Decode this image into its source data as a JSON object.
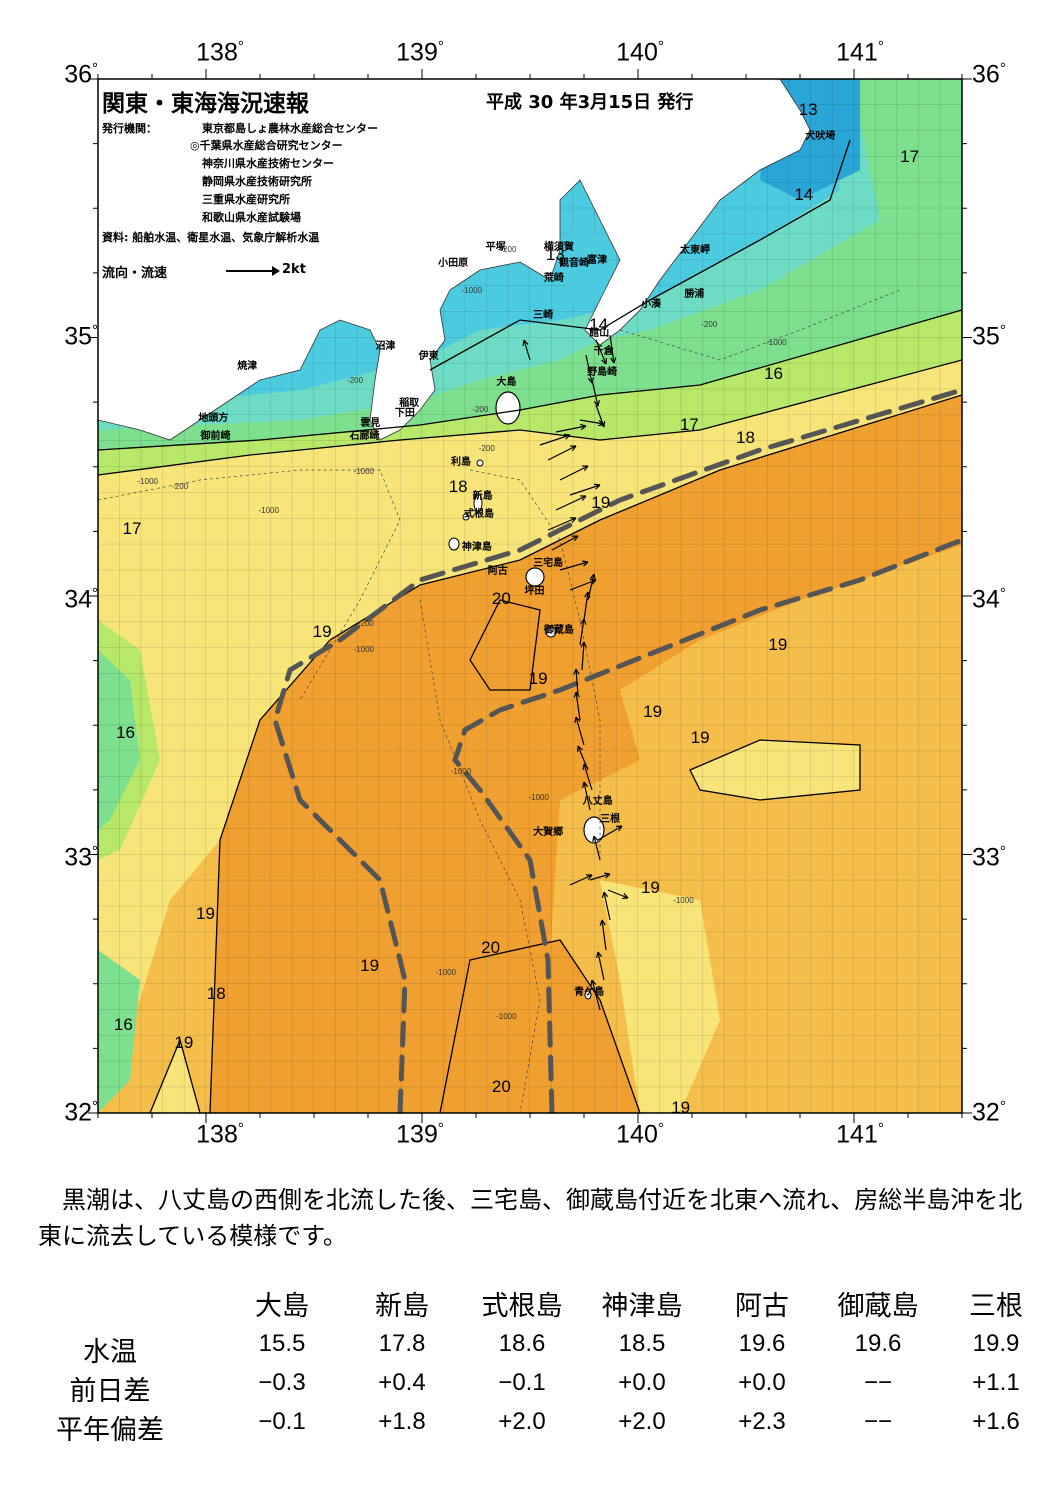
{
  "title": "関東・東海海況速報",
  "issue_date": "平成 30 年3月15日 発行",
  "issuer_label": "発行機関：",
  "issuers": [
    "東京都島しょ農林水産総合センター",
    "◎千葉県水産総合研究センター",
    "神奈川県水産技術センター",
    "静岡県水産技術研究所",
    "三重県水産研究所",
    "和歌山県水産試験場"
  ],
  "data_source": "資料: 船舶水温、衛星水温、気象庁解析水温",
  "legend": {
    "label": "流向・流速",
    "speed": "2kt"
  },
  "axes": {
    "lon_labels": [
      "138",
      "139",
      "140",
      "141"
    ],
    "lat_labels": [
      "36",
      "35",
      "34",
      "33",
      "32"
    ],
    "degree_symbol": "°"
  },
  "place_names": [
    {
      "name": "犬吠埼",
      "lon": 140.83,
      "lat": 35.79
    },
    {
      "name": "太東岬",
      "lon": 140.25,
      "lat": 35.35
    },
    {
      "name": "勝浦",
      "lon": 140.27,
      "lat": 35.18
    },
    {
      "name": "小湊",
      "lon": 140.07,
      "lat": 35.14
    },
    {
      "name": "富津",
      "lon": 139.82,
      "lat": 35.31
    },
    {
      "name": "横須賀",
      "lon": 139.62,
      "lat": 35.36
    },
    {
      "name": "観音崎",
      "lon": 139.69,
      "lat": 35.3
    },
    {
      "name": "荒崎",
      "lon": 139.62,
      "lat": 35.24
    },
    {
      "name": "平塚",
      "lon": 139.35,
      "lat": 35.36
    },
    {
      "name": "小田原",
      "lon": 139.13,
      "lat": 35.3
    },
    {
      "name": "三崎",
      "lon": 139.57,
      "lat": 35.1
    },
    {
      "name": "館山",
      "lon": 139.83,
      "lat": 35.03
    },
    {
      "name": "千倉",
      "lon": 139.85,
      "lat": 34.96
    },
    {
      "name": "野島崎",
      "lon": 139.82,
      "lat": 34.88
    },
    {
      "name": "沼津",
      "lon": 138.84,
      "lat": 34.98
    },
    {
      "name": "伊東",
      "lon": 139.04,
      "lat": 34.94
    },
    {
      "name": "焼津",
      "lon": 138.2,
      "lat": 34.9
    },
    {
      "name": "稲取",
      "lon": 138.95,
      "lat": 34.76
    },
    {
      "name": "下田",
      "lon": 138.93,
      "lat": 34.72
    },
    {
      "name": "雲見",
      "lon": 138.77,
      "lat": 34.68
    },
    {
      "name": "石廊崎",
      "lon": 138.72,
      "lat": 34.63
    },
    {
      "name": "地頭方",
      "lon": 138.02,
      "lat": 34.7
    },
    {
      "name": "御前崎",
      "lon": 138.03,
      "lat": 34.63
    },
    {
      "name": "大島",
      "lon": 139.4,
      "lat": 34.84
    },
    {
      "name": "利島",
      "lon": 139.19,
      "lat": 34.53
    },
    {
      "name": "新島",
      "lon": 139.29,
      "lat": 34.4
    },
    {
      "name": "式根島",
      "lon": 139.25,
      "lat": 34.33
    },
    {
      "name": "神津島",
      "lon": 139.24,
      "lat": 34.2
    },
    {
      "name": "阿古",
      "lon": 139.36,
      "lat": 34.11
    },
    {
      "name": "三宅島",
      "lon": 139.57,
      "lat": 34.14
    },
    {
      "name": "坪田",
      "lon": 139.53,
      "lat": 34.03
    },
    {
      "name": "御蔵島",
      "lon": 139.62,
      "lat": 33.88
    },
    {
      "name": "八丈島",
      "lon": 139.8,
      "lat": 33.22
    },
    {
      "name": "三根",
      "lon": 139.88,
      "lat": 33.15
    },
    {
      "name": "大賀郷",
      "lon": 139.57,
      "lat": 33.1
    },
    {
      "name": "青ケ島",
      "lon": 139.76,
      "lat": 32.48
    }
  ],
  "isotherm_labels": [
    {
      "text": "13",
      "lon": 140.79,
      "lat": 35.88
    },
    {
      "text": "13",
      "lon": 139.62,
      "lat": 35.32
    },
    {
      "text": "17",
      "lon": 141.26,
      "lat": 35.7
    },
    {
      "text": "14",
      "lon": 140.77,
      "lat": 35.55
    },
    {
      "text": "14",
      "lon": 139.82,
      "lat": 35.05
    },
    {
      "text": "16",
      "lon": 140.63,
      "lat": 34.86
    },
    {
      "text": "17",
      "lon": 140.24,
      "lat": 34.66
    },
    {
      "text": "18",
      "lon": 140.5,
      "lat": 34.61
    },
    {
      "text": "18",
      "lon": 139.17,
      "lat": 34.42
    },
    {
      "text": "19",
      "lon": 139.83,
      "lat": 34.36
    },
    {
      "text": "17",
      "lon": 137.66,
      "lat": 34.26
    },
    {
      "text": "20",
      "lon": 139.37,
      "lat": 33.99
    },
    {
      "text": "19",
      "lon": 138.54,
      "lat": 33.86
    },
    {
      "text": "19",
      "lon": 140.65,
      "lat": 33.81
    },
    {
      "text": "19",
      "lon": 139.54,
      "lat": 33.68
    },
    {
      "text": "19",
      "lon": 140.07,
      "lat": 33.55
    },
    {
      "text": "16",
      "lon": 137.63,
      "lat": 33.47
    },
    {
      "text": "19",
      "lon": 140.29,
      "lat": 33.45
    },
    {
      "text": "19",
      "lon": 140.06,
      "lat": 32.87
    },
    {
      "text": "19",
      "lon": 138.0,
      "lat": 32.77
    },
    {
      "text": "20",
      "lon": 139.32,
      "lat": 32.64
    },
    {
      "text": "19",
      "lon": 138.76,
      "lat": 32.57
    },
    {
      "text": "18",
      "lon": 138.05,
      "lat": 32.46
    },
    {
      "text": "16",
      "lon": 137.62,
      "lat": 32.34
    },
    {
      "text": "19",
      "lon": 137.9,
      "lat": 32.27
    },
    {
      "text": "20",
      "lon": 139.37,
      "lat": 32.1
    },
    {
      "text": "19",
      "lon": 140.2,
      "lat": 32.02
    }
  ],
  "depth_labels": [
    {
      "text": "-200",
      "lon": 139.4,
      "lat": 35.34
    },
    {
      "text": "-1000",
      "lon": 139.22,
      "lat": 35.18
    },
    {
      "text": "-200",
      "lon": 140.33,
      "lat": 35.05
    },
    {
      "text": "-1000",
      "lon": 140.63,
      "lat": 34.98
    },
    {
      "text": "-200",
      "lon": 138.69,
      "lat": 34.83
    },
    {
      "text": "-1000",
      "lon": 137.72,
      "lat": 34.44
    },
    {
      "text": "-200",
      "lon": 137.88,
      "lat": 34.42
    },
    {
      "text": "-1000",
      "lon": 138.28,
      "lat": 34.33
    },
    {
      "text": "-200",
      "lon": 139.27,
      "lat": 34.72
    },
    {
      "text": "-200",
      "lon": 139.3,
      "lat": 34.57
    },
    {
      "text": "-1000",
      "lon": 138.72,
      "lat": 34.48
    },
    {
      "text": "-1000",
      "lon": 138.72,
      "lat": 33.79
    },
    {
      "text": "-200",
      "lon": 138.74,
      "lat": 33.89
    },
    {
      "text": "-1000",
      "lon": 139.17,
      "lat": 33.32
    },
    {
      "text": "-1000",
      "lon": 139.53,
      "lat": 33.22
    },
    {
      "text": "-1000",
      "lon": 140.2,
      "lat": 32.82
    },
    {
      "text": "-1000",
      "lon": 139.1,
      "lat": 32.54
    },
    {
      "text": "-1000",
      "lon": 139.38,
      "lat": 32.37
    }
  ],
  "summary": "黒潮は、八丈島の西側を北流した後、三宅島、御蔵島付近を北東へ流れ、房総半島沖を北東に流去している模様です。",
  "stats": {
    "stations": [
      "大島",
      "新島",
      "式根島",
      "神津島",
      "阿古",
      "御蔵島",
      "三根"
    ],
    "rows": [
      {
        "label": "水温",
        "values": [
          "15.5",
          "17.8",
          "18.6",
          "18.5",
          "19.6",
          "19.6",
          "19.9"
        ]
      },
      {
        "label": "前日差",
        "values": [
          "−0.3",
          "+0.4",
          "−0.1",
          "+0.0",
          "+0.0",
          "−−",
          "+1.1"
        ]
      },
      {
        "label": "平年偏差",
        "values": [
          "−0.1",
          "+1.8",
          "+2.0",
          "+2.0",
          "+2.3",
          "−−",
          "+1.6"
        ]
      }
    ]
  },
  "colors": {
    "t13": "#2aa6d6",
    "t14": "#4ccbe0",
    "t15": "#6edcc4",
    "t16": "#7ee08e",
    "t17": "#b8e86a",
    "t18": "#f8e57a",
    "t19": "#f5be4a",
    "t20": "#f0a030",
    "land": "#ffffff",
    "kuroshio": "#555555"
  }
}
